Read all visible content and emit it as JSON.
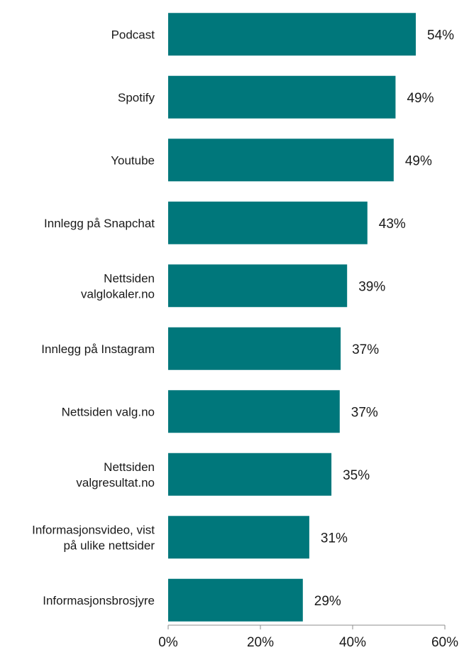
{
  "colors": {
    "bar": "#00777b",
    "axis": "#8c8c8c",
    "text": "#1a1a1a",
    "background": "#ffffff"
  },
  "chart_data": {
    "type": "bar",
    "orientation": "horizontal",
    "title": "",
    "xlabel": "",
    "ylabel": "",
    "grid": false,
    "legend": "none",
    "xlim": [
      0,
      60
    ],
    "x_ticks": [
      0,
      20,
      40,
      60
    ],
    "x_tick_labels": [
      "0%",
      "20%",
      "40%",
      "60%"
    ],
    "categories": [
      "Podcast",
      "Spotify",
      "Youtube",
      "Innlegg på Snapchat",
      "Nettsiden valglokaler.no",
      "Innlegg på Instagram",
      "Nettsiden valg.no",
      "Nettsiden valgresultat.no",
      "Informasjonsvideo, vist på ulike nettsider",
      "Informasjonsbrosjyre"
    ],
    "category_lines": [
      [
        "Podcast"
      ],
      [
        "Spotify"
      ],
      [
        "Youtube"
      ],
      [
        "Innlegg på Snapchat"
      ],
      [
        "Nettsiden",
        "valglokaler.no"
      ],
      [
        "Innlegg på Instagram"
      ],
      [
        "Nettsiden valg.no"
      ],
      [
        "Nettsiden",
        "valgresultat.no"
      ],
      [
        "Informasjonsvideo, vist",
        "på ulike nettsider"
      ],
      [
        "Informasjonsbrosjyre"
      ]
    ],
    "values": [
      53.7,
      49.3,
      48.9,
      43.2,
      38.8,
      37.4,
      37.2,
      35.4,
      30.6,
      29.2
    ],
    "value_labels": [
      "54%",
      "49%",
      "49%",
      "43%",
      "39%",
      "37%",
      "37%",
      "35%",
      "31%",
      "29%"
    ]
  }
}
